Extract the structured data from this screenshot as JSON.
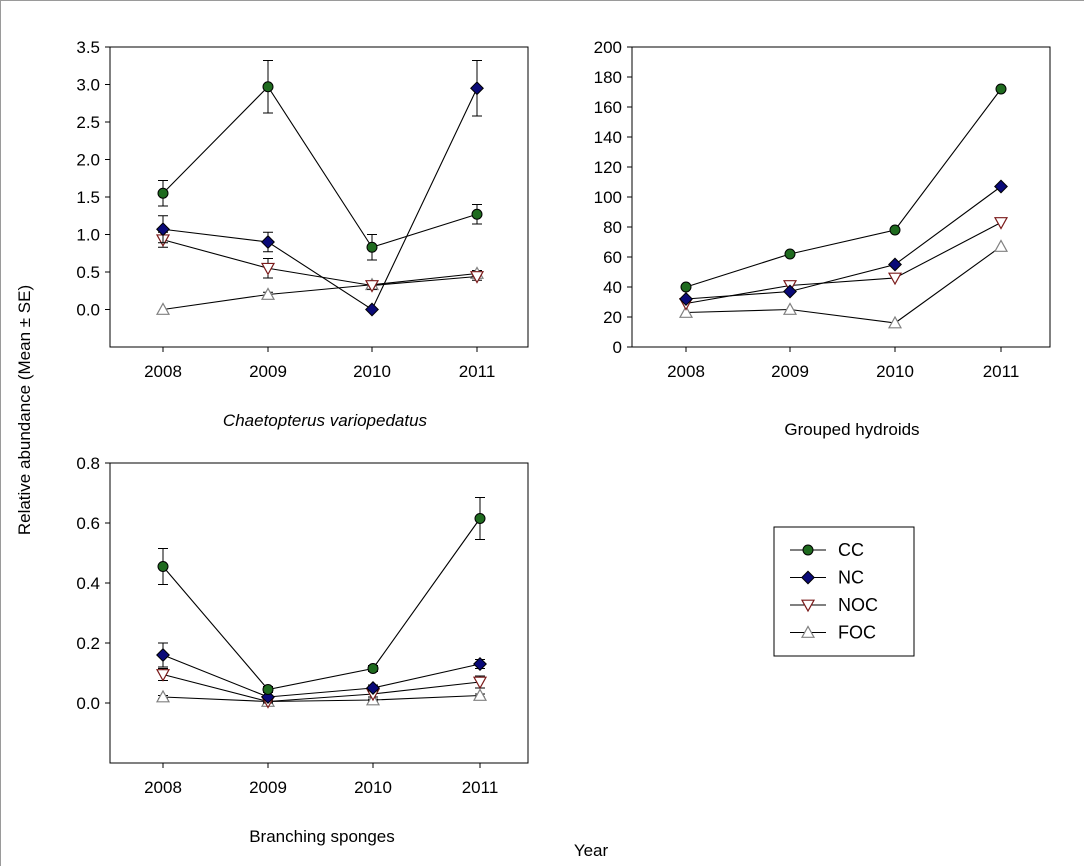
{
  "figure": {
    "y_axis_label": "Relative abundance (Mean ± SE)",
    "x_axis_label": "Year"
  },
  "legend": {
    "placement": "right-middle",
    "entries": [
      {
        "name": "CC",
        "color": "#1f6b1f",
        "marker": "circle-filled"
      },
      {
        "name": "NC",
        "color": "#0a0a78",
        "marker": "diamond-filled"
      },
      {
        "name": "NOC",
        "color": "#7a1a1a",
        "marker": "triangle-down-open"
      },
      {
        "name": "FOC",
        "color": "#808080",
        "marker": "triangle-up-open"
      }
    ]
  },
  "chart_data": [
    {
      "type": "line",
      "title": "Chaetopterus variopedatus",
      "title_italic": true,
      "categories": [
        "2008",
        "2009",
        "2010",
        "2011"
      ],
      "ylim": [
        -0.5,
        3.5
      ],
      "yticks": [
        "0.0",
        "0.5",
        "1.0",
        "1.5",
        "2.0",
        "2.5",
        "3.0",
        "3.5"
      ],
      "grid": false,
      "series": [
        {
          "name": "CC",
          "values": [
            1.55,
            2.97,
            0.83,
            1.27
          ],
          "errors": [
            0.17,
            0.35,
            0.17,
            0.13
          ]
        },
        {
          "name": "NC",
          "values": [
            1.07,
            0.9,
            0.0,
            2.95
          ],
          "errors": [
            0.18,
            0.13,
            0.0,
            0.37
          ]
        },
        {
          "name": "NOC",
          "values": [
            0.93,
            0.55,
            0.32,
            0.44
          ],
          "errors": [
            0.1,
            0.13,
            0.05,
            0.05
          ]
        },
        {
          "name": "FOC",
          "values": [
            0.0,
            0.2,
            0.33,
            0.48
          ],
          "errors": [
            0.0,
            0.03,
            0.03,
            0.04
          ]
        }
      ]
    },
    {
      "type": "line",
      "title": "Grouped hydroids",
      "title_italic": false,
      "categories": [
        "2008",
        "2009",
        "2010",
        "2011"
      ],
      "ylim": [
        0,
        200
      ],
      "yticks": [
        "0",
        "20",
        "40",
        "60",
        "80",
        "100",
        "120",
        "140",
        "160",
        "180",
        "200"
      ],
      "grid": false,
      "series": [
        {
          "name": "CC",
          "values": [
            40,
            62,
            78,
            172
          ],
          "errors": [
            0,
            0,
            0,
            0
          ]
        },
        {
          "name": "NC",
          "values": [
            32,
            37,
            55,
            107
          ],
          "errors": [
            0,
            0,
            0,
            0
          ]
        },
        {
          "name": "NOC",
          "values": [
            29,
            41,
            46,
            83
          ],
          "errors": [
            0,
            0,
            0,
            0
          ]
        },
        {
          "name": "FOC",
          "values": [
            23,
            25,
            16,
            67
          ],
          "errors": [
            0,
            0,
            0,
            0
          ]
        }
      ]
    },
    {
      "type": "line",
      "title": "Branching sponges",
      "title_italic": false,
      "categories": [
        "2008",
        "2009",
        "2010",
        "2011"
      ],
      "ylim": [
        -0.2,
        0.8
      ],
      "yticks": [
        "0.0",
        "0.2",
        "0.4",
        "0.6",
        "0.8"
      ],
      "grid": false,
      "series": [
        {
          "name": "CC",
          "values": [
            0.455,
            0.045,
            0.115,
            0.615
          ],
          "errors": [
            0.06,
            0.01,
            0.01,
            0.07
          ]
        },
        {
          "name": "NC",
          "values": [
            0.16,
            0.02,
            0.05,
            0.13
          ],
          "errors": [
            0.04,
            0.005,
            0.01,
            0.015
          ]
        },
        {
          "name": "NOC",
          "values": [
            0.095,
            0.005,
            0.03,
            0.07
          ],
          "errors": [
            0.02,
            0.005,
            0.01,
            0.02
          ]
        },
        {
          "name": "FOC",
          "values": [
            0.02,
            0.005,
            0.01,
            0.025
          ],
          "errors": [
            0.005,
            0.002,
            0.003,
            0.005
          ]
        }
      ]
    }
  ]
}
